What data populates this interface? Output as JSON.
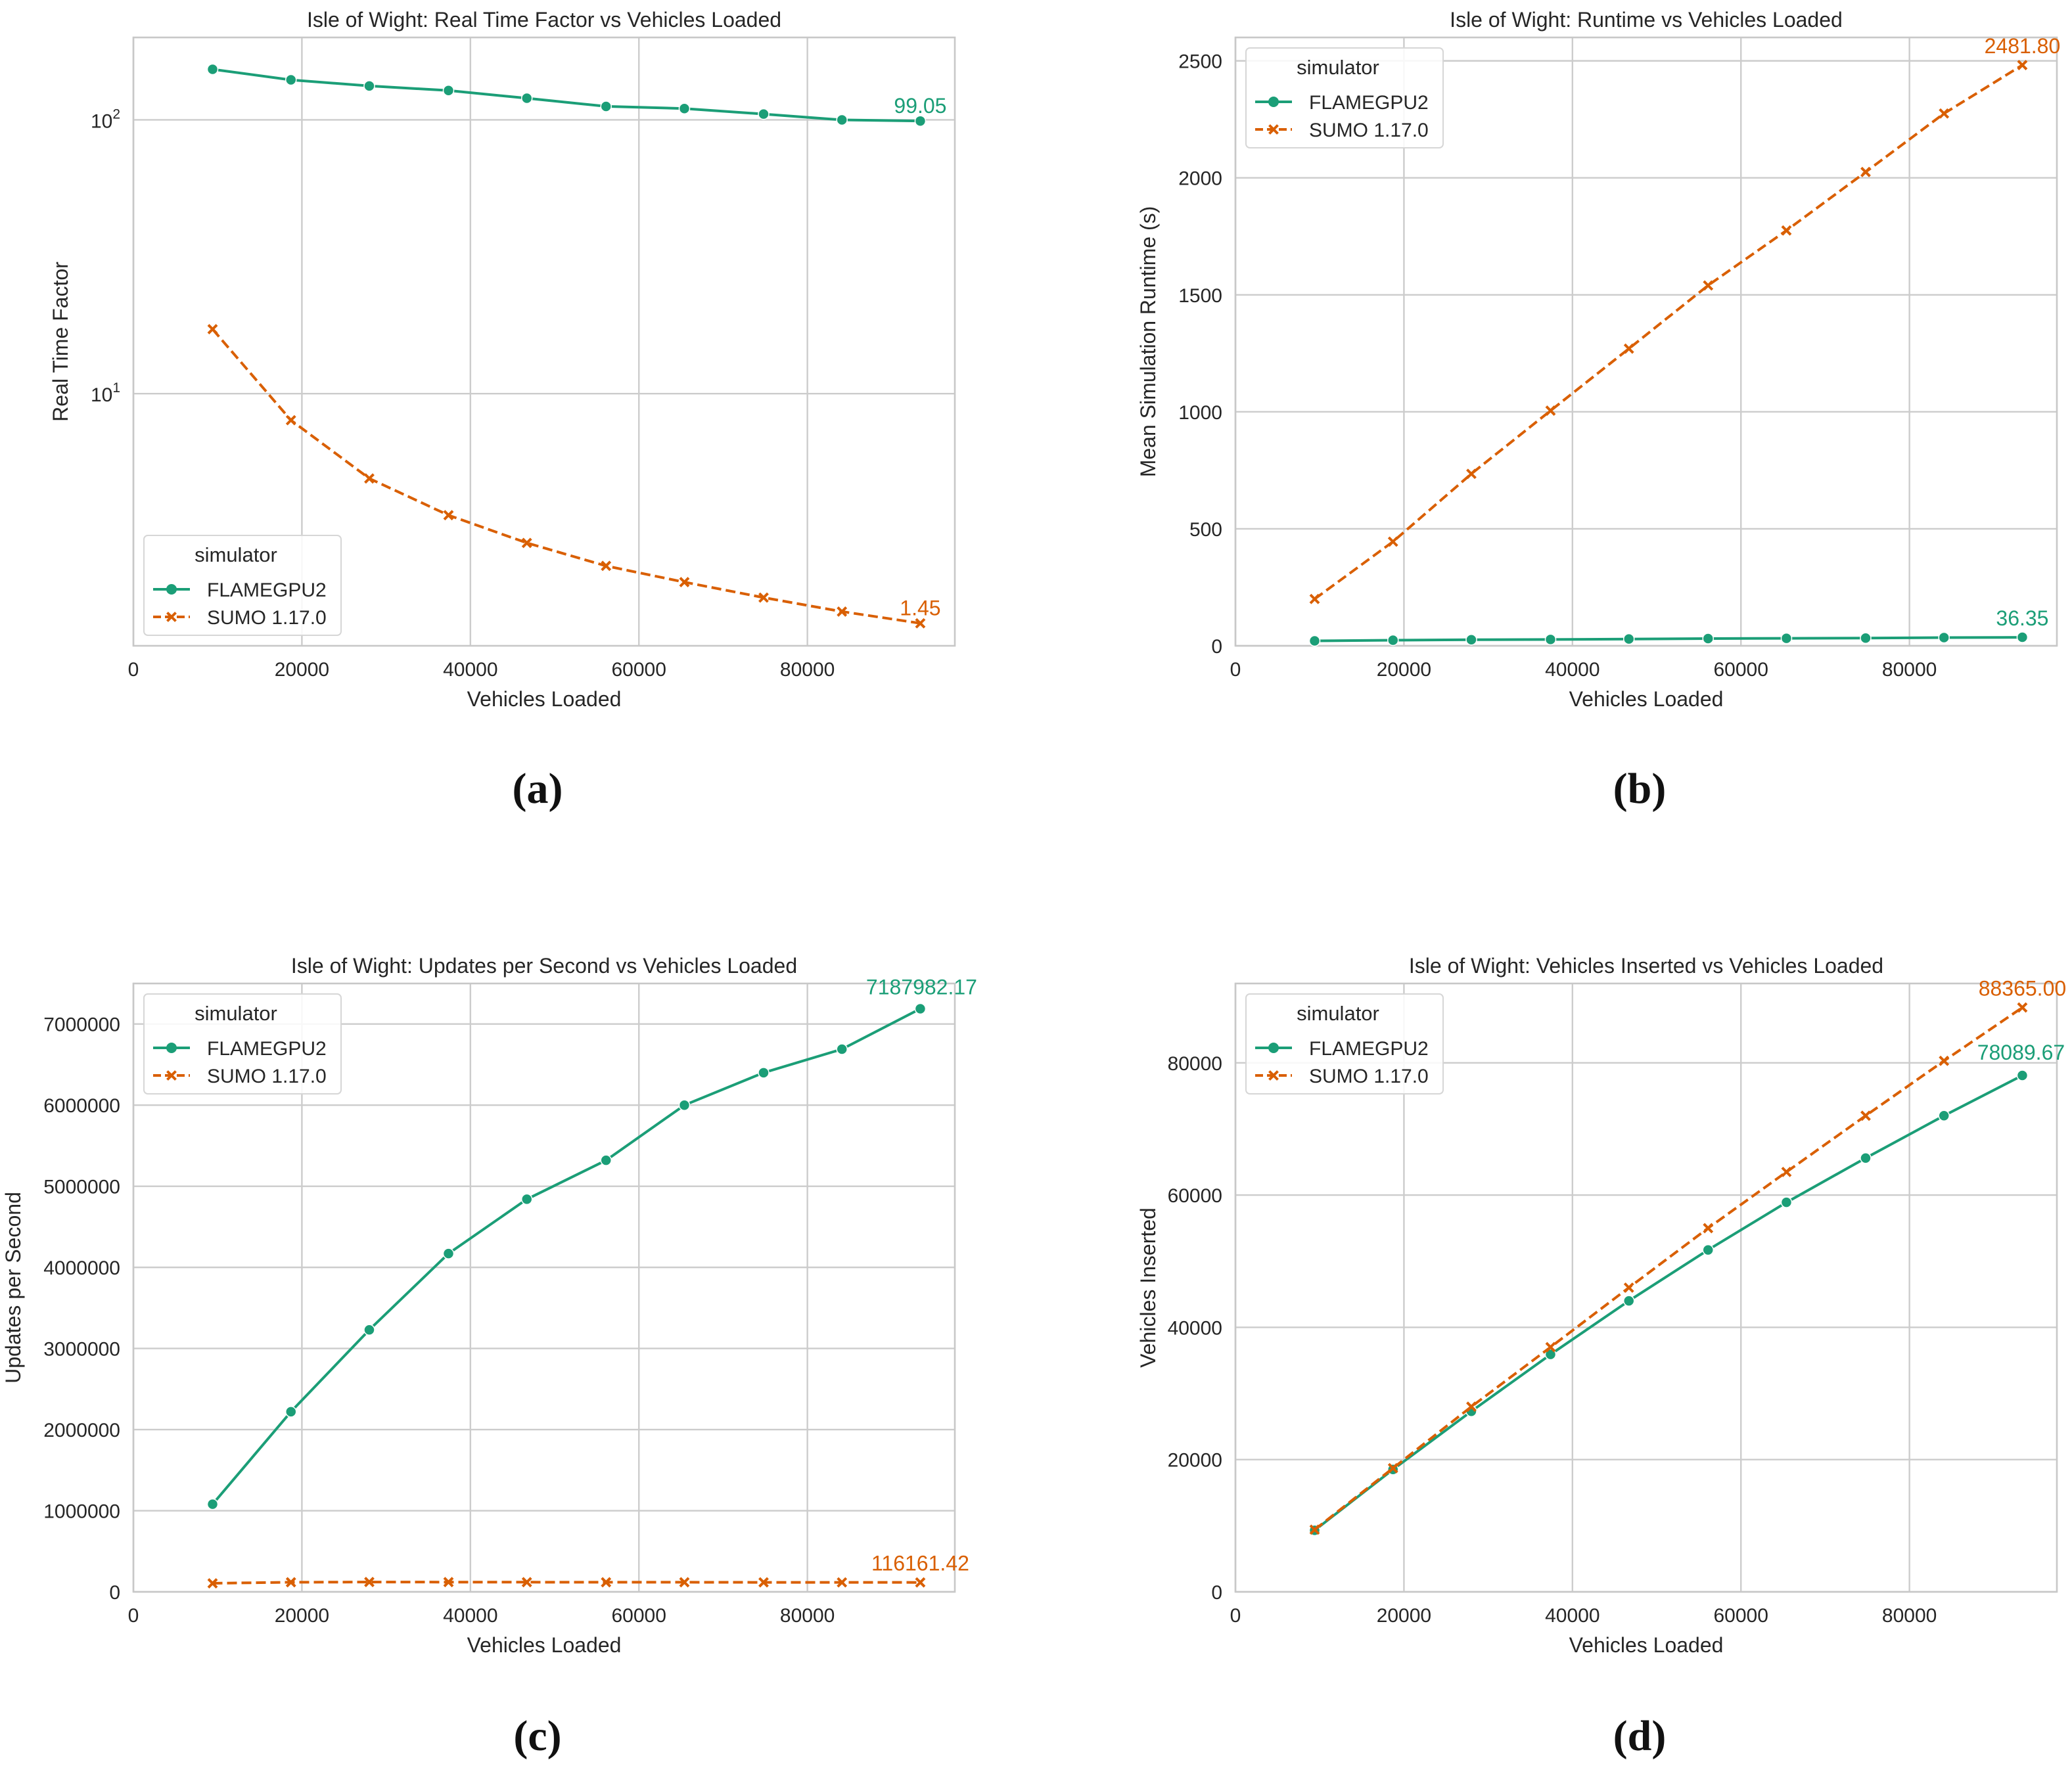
{
  "colors": {
    "flamegpu2": "#1b9e77",
    "sumo": "#d95f02",
    "grid": "#cccccc",
    "axis": "#c8c8c8",
    "text": "#262626"
  },
  "chart_data": [
    {
      "panel_label": "(a)",
      "type": "line",
      "title": "Isle of Wight: Real Time Factor vs Vehicles Loaded",
      "xlabel": "Vehicles Loaded",
      "ylabel": "Real Time Factor",
      "yscale": "log",
      "xlim": [
        0,
        97500
      ],
      "ylim": [
        1.2,
        200
      ],
      "xticks": [
        0,
        20000,
        40000,
        60000,
        80000
      ],
      "xtick_labels": [
        "0",
        "20000",
        "40000",
        "60000",
        "80000"
      ],
      "yticks": [
        10,
        100
      ],
      "ytick_labels": [
        {
          "base": "10",
          "exp": "1"
        },
        {
          "base": "10",
          "exp": "2"
        }
      ],
      "grid": true,
      "legend": {
        "title": "simulator",
        "placement": "bottom-left"
      },
      "x": [
        9400,
        18700,
        28000,
        37400,
        46700,
        56100,
        65400,
        74800,
        84100,
        93400
      ],
      "series": [
        {
          "name": "FLAMEGPU2",
          "values": [
            153,
            140,
            133,
            128,
            120,
            112,
            110,
            105,
            100,
            99.05
          ],
          "end_label": "99.05",
          "marker": "circle",
          "style": "solid"
        },
        {
          "name": "SUMO 1.17.0",
          "values": [
            17.2,
            8.0,
            4.9,
            3.6,
            2.85,
            2.35,
            2.05,
            1.8,
            1.6,
            1.45
          ],
          "end_label": "1.45",
          "marker": "x",
          "style": "dashed"
        }
      ]
    },
    {
      "panel_label": "(b)",
      "type": "line",
      "title": "Isle of Wight: Runtime vs Vehicles Loaded",
      "xlabel": "Vehicles Loaded",
      "ylabel": "Mean Simulation Runtime (s)",
      "yscale": "linear",
      "xlim": [
        0,
        97500
      ],
      "ylim": [
        0,
        2600
      ],
      "xticks": [
        0,
        20000,
        40000,
        60000,
        80000
      ],
      "xtick_labels": [
        "0",
        "20000",
        "40000",
        "60000",
        "80000"
      ],
      "yticks": [
        0,
        500,
        1000,
        1500,
        2000,
        2500
      ],
      "ytick_labels": [
        "0",
        "500",
        "1000",
        "1500",
        "2000",
        "2500"
      ],
      "grid": true,
      "legend": {
        "title": "simulator",
        "placement": "top-left"
      },
      "x": [
        9400,
        18700,
        28000,
        37400,
        46700,
        56100,
        65400,
        74800,
        84100,
        93400
      ],
      "series": [
        {
          "name": "FLAMEGPU2",
          "values": [
            21,
            24,
            26,
            27,
            29,
            31,
            32,
            33,
            35,
            36.35
          ],
          "end_label": "36.35",
          "marker": "circle",
          "style": "solid"
        },
        {
          "name": "SUMO 1.17.0",
          "values": [
            200,
            445,
            735,
            1005,
            1270,
            1540,
            1775,
            2025,
            2275,
            2481.8
          ],
          "end_label": "2481.80",
          "marker": "x",
          "style": "dashed"
        }
      ]
    },
    {
      "panel_label": "(c)",
      "type": "line",
      "title": "Isle of Wight: Updates per Second vs Vehicles Loaded",
      "xlabel": "Vehicles Loaded",
      "ylabel": "Updates per Second",
      "yscale": "linear",
      "xlim": [
        0,
        97500
      ],
      "ylim": [
        0,
        7500000
      ],
      "xticks": [
        0,
        20000,
        40000,
        60000,
        80000
      ],
      "xtick_labels": [
        "0",
        "20000",
        "40000",
        "60000",
        "80000"
      ],
      "yticks": [
        0,
        1000000,
        2000000,
        3000000,
        4000000,
        5000000,
        6000000,
        7000000
      ],
      "ytick_labels": [
        "0",
        "1000000",
        "2000000",
        "3000000",
        "4000000",
        "5000000",
        "6000000",
        "7000000"
      ],
      "grid": true,
      "legend": {
        "title": "simulator",
        "placement": "top-left"
      },
      "x": [
        9400,
        18700,
        28000,
        37400,
        46700,
        56100,
        65400,
        74800,
        84100,
        93400
      ],
      "series": [
        {
          "name": "FLAMEGPU2",
          "values": [
            1080000,
            2220000,
            3230000,
            4170000,
            4840000,
            5320000,
            6000000,
            6400000,
            6690000,
            7187982.17
          ],
          "end_label": "7187982.17",
          "marker": "circle",
          "style": "solid"
        },
        {
          "name": "SUMO 1.17.0",
          "values": [
            105000,
            118000,
            121000,
            120000,
            119000,
            118000,
            118000,
            117000,
            116500,
            116161.42
          ],
          "end_label": "116161.42",
          "marker": "x",
          "style": "dashed"
        }
      ]
    },
    {
      "panel_label": "(d)",
      "type": "line",
      "title": "Isle of Wight: Vehicles Inserted vs Vehicles Loaded",
      "xlabel": "Vehicles Loaded",
      "ylabel": "Vehicles Inserted",
      "yscale": "linear",
      "xlim": [
        0,
        97500
      ],
      "ylim": [
        0,
        92000
      ],
      "xticks": [
        0,
        20000,
        40000,
        60000,
        80000
      ],
      "xtick_labels": [
        "0",
        "20000",
        "40000",
        "60000",
        "80000"
      ],
      "yticks": [
        0,
        20000,
        40000,
        60000,
        80000
      ],
      "ytick_labels": [
        "0",
        "20000",
        "40000",
        "60000",
        "80000"
      ],
      "grid": true,
      "legend": {
        "title": "simulator",
        "placement": "top-left"
      },
      "x": [
        9400,
        18700,
        28000,
        37400,
        46700,
        56100,
        65400,
        74800,
        84100,
        93400
      ],
      "series": [
        {
          "name": "FLAMEGPU2",
          "values": [
            9300,
            18500,
            27300,
            35900,
            44000,
            51700,
            58900,
            65600,
            72000,
            78089.67
          ],
          "end_label": "78089.67",
          "marker": "circle",
          "style": "solid"
        },
        {
          "name": "SUMO 1.17.0",
          "values": [
            9400,
            18700,
            28000,
            37000,
            46000,
            55000,
            63500,
            72000,
            80300,
            88365.0
          ],
          "end_label": "88365.00",
          "marker": "x",
          "style": "dashed"
        }
      ]
    }
  ]
}
